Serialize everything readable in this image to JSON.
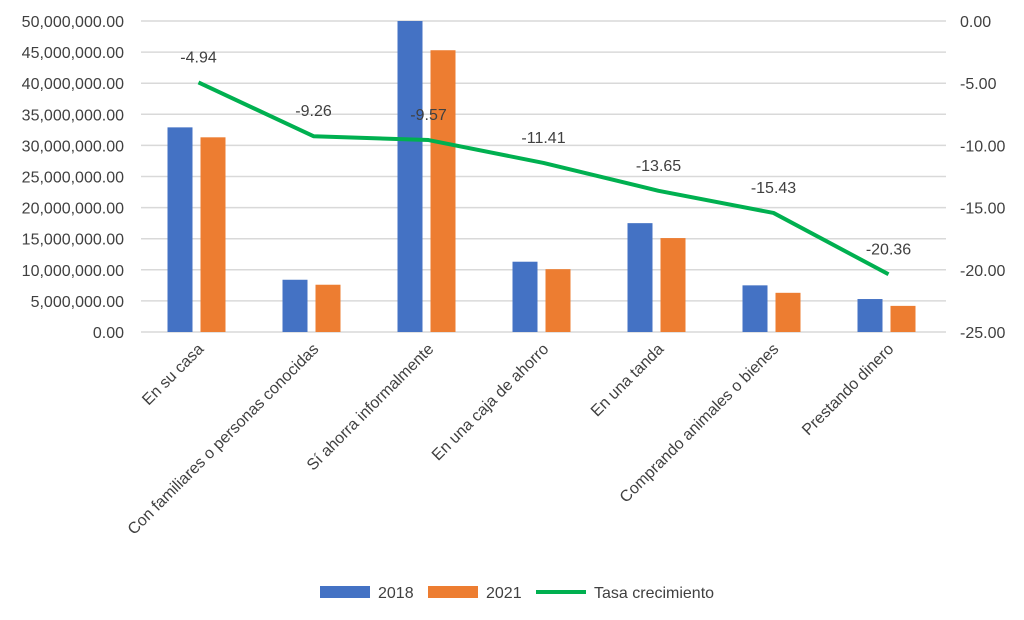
{
  "chart_data": {
    "type": "bar",
    "title": "",
    "categories": [
      "En su casa",
      "Con familiares o personas conocidas",
      "Sí ahorra informalmente",
      "En una caja de ahorro",
      "En una tanda",
      "Comprando animales o bienes",
      "Prestando dinero"
    ],
    "series": [
      {
        "name": "2018",
        "type": "bar",
        "axis": "left",
        "color": "#4472C4",
        "values": [
          32900000,
          8400000,
          50000000,
          11300000,
          17500000,
          7500000,
          5300000
        ]
      },
      {
        "name": "2021",
        "type": "bar",
        "axis": "left",
        "color": "#ED7D31",
        "values": [
          31300000,
          7600000,
          45300000,
          10100000,
          15100000,
          6300000,
          4200000
        ]
      },
      {
        "name": "Tasa crecimiento",
        "type": "line",
        "axis": "right",
        "color": "#00B050",
        "values": [
          -4.94,
          -9.26,
          -9.57,
          -11.41,
          -13.65,
          -15.43,
          -20.36
        ],
        "labels": [
          "-4.94",
          "-9.26",
          "-9.57",
          "-11.41",
          "-13.65",
          "-15.43",
          "-20.36"
        ]
      }
    ],
    "left_axis": {
      "min": 0,
      "max": 50000000,
      "ticks": [
        "0.00",
        "5,000,000.00",
        "10,000,000.00",
        "15,000,000.00",
        "20,000,000.00",
        "25,000,000.00",
        "30,000,000.00",
        "35,000,000.00",
        "40,000,000.00",
        "45,000,000.00",
        "50,000,000.00"
      ]
    },
    "right_axis": {
      "min": -25,
      "max": 0,
      "ticks": [
        "-25.00",
        "-20.00",
        "-15.00",
        "-10.00",
        "-5.00",
        "0.00"
      ]
    },
    "grid": true,
    "legend_position": "bottom"
  }
}
